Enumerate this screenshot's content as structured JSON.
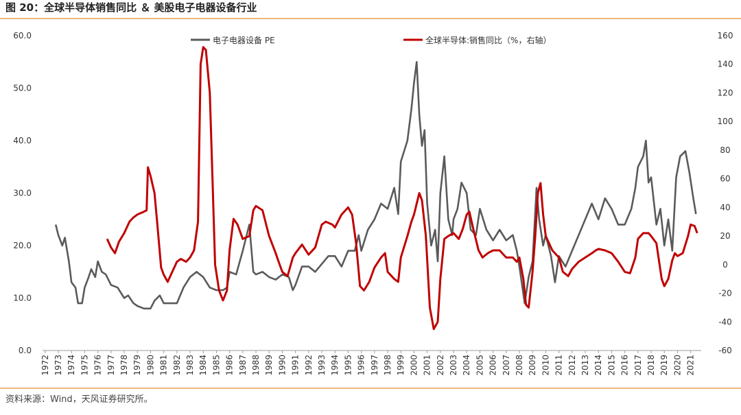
{
  "chart_data": {
    "type": "line",
    "title": "图 20：全球半导体销售同比 ＆ 美股电子电器设备行业",
    "source": "资料来源：Wind，天风证券研究所。",
    "xlim": [
      1971.8,
      2021.8
    ],
    "xticks": [
      1972,
      1973,
      1974,
      1975,
      1976,
      1977,
      1978,
      1979,
      1980,
      1981,
      1982,
      1983,
      1984,
      1985,
      1986,
      1987,
      1988,
      1989,
      1990,
      1991,
      1992,
      1993,
      1994,
      1995,
      1996,
      1997,
      1998,
      1999,
      2000,
      2001,
      2002,
      2003,
      2004,
      2005,
      2006,
      2007,
      2008,
      2009,
      2010,
      2011,
      2012,
      2013,
      2014,
      2015,
      2016,
      2017,
      2018,
      2019,
      2020,
      2021
    ],
    "ylim": [
      0,
      60
    ],
    "yticks": [
      {
        "value": 0,
        "label": "0.0"
      },
      {
        "value": 10,
        "label": "10.0"
      },
      {
        "value": 20,
        "label": "20.0"
      },
      {
        "value": 30,
        "label": "30.0"
      },
      {
        "value": 40,
        "label": "40.0"
      },
      {
        "value": 50,
        "label": "50.0"
      },
      {
        "value": 60,
        "label": "60.0"
      }
    ],
    "y2lim": [
      -60,
      160
    ],
    "y2ticks": [
      -60,
      -40,
      -20,
      0,
      20,
      40,
      60,
      80,
      100,
      120,
      140,
      160
    ],
    "series": [
      {
        "name": "电子电器设备 PE",
        "color": "#5a5a5a",
        "x": [
          1972.8,
          1973.0,
          1973.3,
          1973.5,
          1973.8,
          1974.0,
          1974.3,
          1974.5,
          1974.8,
          1975.0,
          1975.3,
          1975.5,
          1975.8,
          1976.0,
          1976.3,
          1976.6,
          1977.0,
          1977.5,
          1978.0,
          1978.3,
          1978.7,
          1979.0,
          1979.5,
          1980.0,
          1980.3,
          1980.7,
          1981.0,
          1981.5,
          1982.0,
          1982.5,
          1983.0,
          1983.5,
          1984.0,
          1984.5,
          1985.0,
          1985.5,
          1985.8,
          1986.0,
          1986.5,
          1987.0,
          1987.5,
          1987.8,
          1988.0,
          1988.5,
          1989.0,
          1989.5,
          1990.0,
          1990.5,
          1990.8,
          1991.0,
          1991.5,
          1992.0,
          1992.5,
          1993.0,
          1993.5,
          1994.0,
          1994.5,
          1995.0,
          1995.5,
          1995.8,
          1996.0,
          1996.5,
          1997.0,
          1997.5,
          1998.0,
          1998.5,
          1998.8,
          1999.0,
          1999.5,
          1999.8,
          2000.0,
          2000.2,
          2000.4,
          2000.6,
          2000.8,
          2001.0,
          2001.3,
          2001.6,
          2001.8,
          2002.0,
          2002.3,
          2002.6,
          2002.9,
          2003.0,
          2003.3,
          2003.6,
          2004.0,
          2004.3,
          2004.7,
          2005.0,
          2005.5,
          2006.0,
          2006.5,
          2007.0,
          2007.5,
          2007.8,
          2008.0,
          2008.4,
          2008.7,
          2009.0,
          2009.3,
          2009.5,
          2009.8,
          2010.0,
          2010.4,
          2010.7,
          2011.0,
          2011.5,
          2012.0,
          2012.5,
          2013.0,
          2013.5,
          2014.0,
          2014.5,
          2015.0,
          2015.5,
          2016.0,
          2016.5,
          2016.8,
          2017.0,
          2017.4,
          2017.6,
          2017.8,
          2018.0,
          2018.4,
          2018.7,
          2019.0,
          2019.3,
          2019.6,
          2019.9,
          2020.2,
          2020.6,
          2020.9,
          2021.2,
          2021.4
        ],
        "values": [
          24,
          22,
          20,
          21.5,
          17,
          13,
          12,
          9,
          9,
          12,
          14,
          15.5,
          14,
          17,
          15,
          14.5,
          12.5,
          12,
          10,
          10.5,
          9,
          8.5,
          8,
          8,
          9.5,
          10.5,
          9,
          9,
          9,
          12,
          14,
          15,
          14,
          12,
          11.5,
          11.5,
          12,
          15,
          14.5,
          19,
          24,
          15,
          14.5,
          15,
          14,
          13.5,
          14.5,
          14,
          11.5,
          12.5,
          16,
          16,
          15,
          16.5,
          18,
          18,
          16,
          19,
          19,
          22,
          19,
          23,
          25,
          28,
          27,
          31,
          26,
          36,
          40,
          46,
          51,
          55,
          45,
          39,
          42,
          28,
          20,
          23,
          17,
          30,
          37,
          25,
          22,
          25,
          27,
          32,
          30,
          23,
          22,
          27,
          23,
          21,
          23,
          21,
          22,
          19,
          16,
          9,
          14,
          17,
          31,
          25,
          20,
          22,
          18,
          13,
          18,
          16,
          19,
          22,
          25,
          28,
          25,
          29,
          27,
          24,
          24,
          27,
          31,
          35,
          37,
          40,
          32,
          33,
          24,
          27,
          20,
          25,
          19,
          33,
          37,
          38,
          34,
          29,
          26
        ]
      },
      {
        "name": "全球半导体:销售同比（%，右轴）",
        "color": "#c00000",
        "axis": "y2",
        "x": [
          1976.7,
          1977.0,
          1977.3,
          1977.6,
          1978.0,
          1978.4,
          1978.7,
          1979.0,
          1979.5,
          1979.7,
          1979.8,
          1980.0,
          1980.3,
          1980.5,
          1980.8,
          1981.0,
          1981.3,
          1981.5,
          1982.0,
          1982.3,
          1982.7,
          1983.0,
          1983.3,
          1983.6,
          1983.8,
          1984.0,
          1984.2,
          1984.5,
          1984.7,
          1984.9,
          1985.2,
          1985.5,
          1985.8,
          1986.0,
          1986.3,
          1986.6,
          1987.0,
          1987.5,
          1987.8,
          1988.0,
          1988.5,
          1989.0,
          1989.5,
          1989.8,
          1990.0,
          1990.4,
          1990.8,
          1991.0,
          1991.5,
          1992.0,
          1992.5,
          1993.0,
          1993.3,
          1993.8,
          1994.0,
          1994.5,
          1995.0,
          1995.3,
          1995.6,
          1995.9,
          1996.2,
          1996.6,
          1997.0,
          1997.5,
          1997.8,
          1998.0,
          1998.5,
          1998.8,
          1999.0,
          1999.5,
          1999.8,
          2000.0,
          2000.4,
          2000.6,
          2000.9,
          2001.2,
          2001.5,
          2001.8,
          2002.0,
          2002.3,
          2002.6,
          2003.0,
          2003.4,
          2003.7,
          2004.0,
          2004.2,
          2004.5,
          2004.9,
          2005.2,
          2005.6,
          2006.0,
          2006.5,
          2007.0,
          2007.5,
          2007.8,
          2008.0,
          2008.3,
          2008.5,
          2008.7,
          2009.0,
          2009.2,
          2009.4,
          2009.6,
          2009.8,
          2010.0,
          2010.5,
          2011.0,
          2011.3,
          2011.7,
          2012.0,
          2012.5,
          2013.0,
          2013.5,
          2013.8,
          2014.0,
          2014.5,
          2015.0,
          2015.5,
          2016.0,
          2016.4,
          2016.8,
          2017.0,
          2017.4,
          2017.8,
          2018.0,
          2018.4,
          2018.8,
          2019.0,
          2019.3,
          2019.6,
          2019.8,
          2020.0,
          2020.4,
          2020.8,
          2021.0,
          2021.3,
          2021.5
        ],
        "values": [
          18,
          12,
          8,
          16,
          22,
          30,
          33,
          35,
          37,
          38,
          68,
          62,
          50,
          30,
          -2,
          -7,
          -12,
          -8,
          2,
          4,
          2,
          5,
          10,
          30,
          140,
          152,
          150,
          120,
          60,
          0,
          -18,
          -25,
          -18,
          10,
          32,
          28,
          18,
          20,
          38,
          41,
          38,
          20,
          8,
          0,
          -5,
          -8,
          5,
          8,
          14,
          7,
          12,
          28,
          30,
          28,
          26,
          35,
          40,
          35,
          15,
          -15,
          -18,
          -12,
          -2,
          5,
          8,
          -5,
          -10,
          -12,
          5,
          20,
          30,
          35,
          50,
          45,
          20,
          -30,
          -45,
          -40,
          -10,
          18,
          20,
          22,
          18,
          25,
          35,
          37,
          25,
          10,
          5,
          8,
          10,
          10,
          5,
          5,
          2,
          5,
          -10,
          -28,
          -30,
          -5,
          20,
          50,
          57,
          35,
          20,
          10,
          5,
          -5,
          -8,
          -3,
          2,
          5,
          8,
          10,
          11,
          10,
          8,
          2,
          -5,
          -6,
          5,
          18,
          22,
          22,
          20,
          15,
          -10,
          -15,
          -10,
          3,
          8,
          6,
          8,
          20,
          28,
          27,
          22
        ]
      }
    ]
  }
}
